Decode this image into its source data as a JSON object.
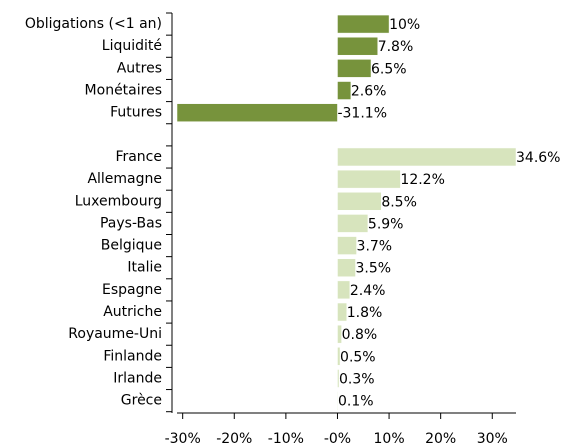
{
  "chart_data": {
    "type": "bar",
    "orientation": "horizontal",
    "categories": [
      "Obligations (<1 an)",
      "Liquidité",
      "Autres",
      "Monétaires",
      "Futures",
      null,
      "France",
      "Allemagne",
      "Luxembourg",
      "Pays-Bas",
      "Belgique",
      "Italie",
      "Espagne",
      "Autriche",
      "Royaume-Uni",
      "Finlande",
      "Irlande",
      "Grèce"
    ],
    "series": [
      {
        "color": "#77933c",
        "values": [
          10,
          7.8,
          6.5,
          2.6,
          -31.1,
          null,
          null,
          null,
          null,
          null,
          null,
          null,
          null,
          null,
          null,
          null,
          null,
          null
        ],
        "value_labels": [
          "10%",
          "7.8%",
          "6.5%",
          "2.6%",
          "-31.1%",
          null,
          null,
          null,
          null,
          null,
          null,
          null,
          null,
          null,
          null,
          null,
          null,
          null
        ]
      },
      {
        "color": "#d7e4bd",
        "values": [
          null,
          null,
          null,
          null,
          null,
          null,
          34.6,
          12.2,
          8.5,
          5.9,
          3.7,
          3.5,
          2.4,
          1.8,
          0.8,
          0.5,
          0.3,
          0.1
        ],
        "value_labels": [
          null,
          null,
          null,
          null,
          null,
          null,
          "34.6%",
          "12.2%",
          "8.5%",
          "5.9%",
          "3.7%",
          "3.5%",
          "2.4%",
          "1.8%",
          "0.8%",
          "0.5%",
          "0.3%",
          "0.1%"
        ]
      }
    ],
    "xlim": [
      -31.1,
      34.6
    ],
    "xticks": [
      {
        "value": -30,
        "label": "-30%"
      },
      {
        "value": -20,
        "label": "-20%"
      },
      {
        "value": -10,
        "label": "-10%"
      },
      {
        "value": 0,
        "label": "-0%"
      },
      {
        "value": 10,
        "label": "10%"
      },
      {
        "value": 20,
        "label": "20%"
      },
      {
        "value": 30,
        "label": "30%"
      }
    ]
  }
}
